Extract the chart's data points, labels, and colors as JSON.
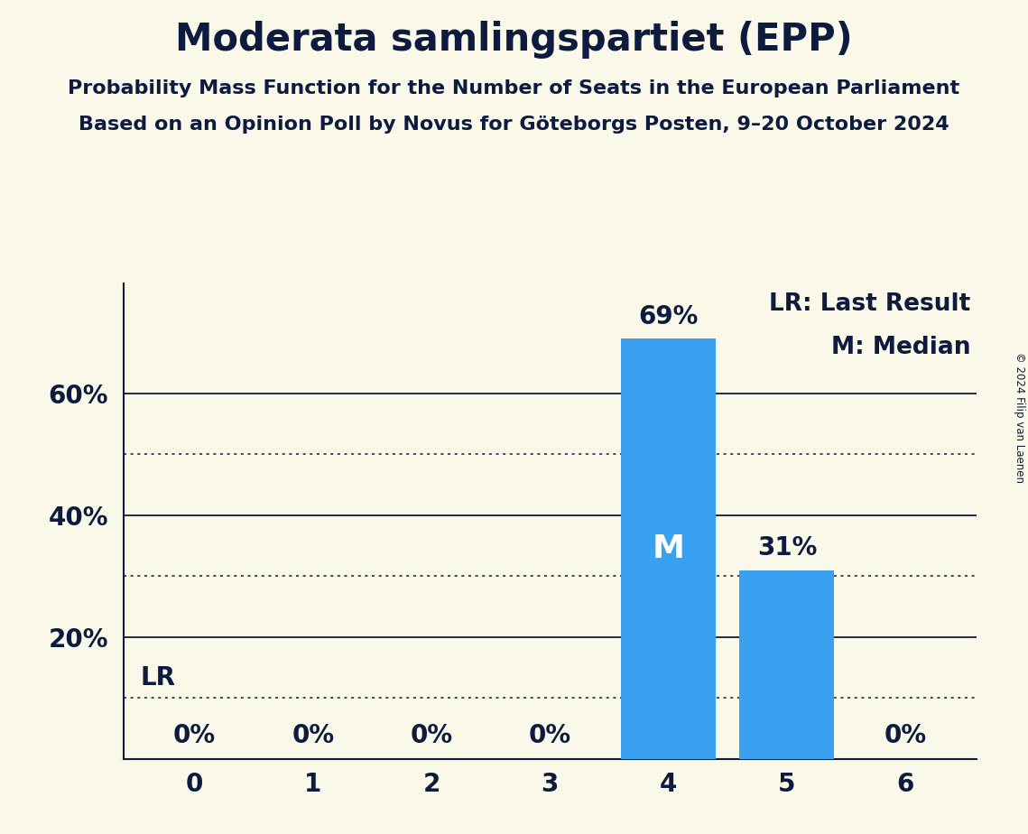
{
  "title": "Moderata samlingspartiet (EPP)",
  "subtitle1": "Probability Mass Function for the Number of Seats in the European Parliament",
  "subtitle2": "Based on an Opinion Poll by Novus for Göteborgs Posten, 9–20 October 2024",
  "copyright": "© 2024 Filip van Laenen",
  "categories": [
    0,
    1,
    2,
    3,
    4,
    5,
    6
  ],
  "values": [
    0,
    0,
    0,
    0,
    69,
    31,
    0
  ],
  "bar_color": "#3aa0f0",
  "background_color": "#faf8e8",
  "text_color": "#0d1b3e",
  "dotted_lines": [
    10,
    30,
    50
  ],
  "solid_lines": [
    20,
    40,
    60
  ],
  "lr_line": 10,
  "median_seat": 4,
  "legend_lr": "LR: Last Result",
  "legend_m": "M: Median",
  "ylim_max": 78,
  "bar_labels": [
    "0%",
    "0%",
    "0%",
    "0%",
    "69%",
    "31%",
    "0%"
  ],
  "median_label": "M",
  "title_fontsize": 30,
  "subtitle_fontsize": 16,
  "bar_label_fontsize": 20,
  "tick_fontsize": 20,
  "legend_fontsize": 19
}
